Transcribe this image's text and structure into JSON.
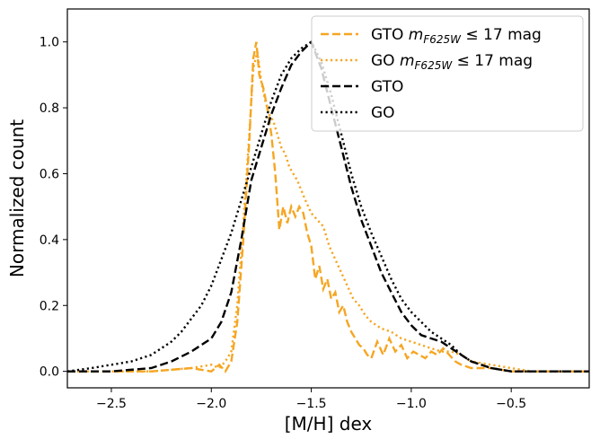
{
  "chart_data": {
    "type": "line",
    "xlabel": "[M/H] dex",
    "ylabel": "Normalized count",
    "xlim": [
      -2.72,
      -0.11
    ],
    "ylim": [
      -0.05,
      1.1
    ],
    "xticks": [
      -2.5,
      -2.0,
      -1.5,
      -1.0,
      -0.5
    ],
    "xtick_labels": [
      "−2.5",
      "−2.0",
      "−1.5",
      "−1.0",
      "−0.5"
    ],
    "yticks": [
      0.0,
      0.2,
      0.4,
      0.6,
      0.8,
      1.0
    ],
    "ytick_labels": [
      "0.0",
      "0.2",
      "0.4",
      "0.6",
      "0.8",
      "1.0"
    ],
    "grid": false,
    "legend_position": "top-right",
    "series": [
      {
        "name": "GTO m_F625W ≤ 17 mag",
        "label_main": "GTO ",
        "label_var": "m",
        "label_sub": "F625W",
        "label_rest": " ≤ 17 mag",
        "color": "#f5a623",
        "style": "dashed",
        "x": [
          -2.72,
          -2.3,
          -2.1,
          -2.0,
          -1.96,
          -1.93,
          -1.9,
          -1.87,
          -1.84,
          -1.81,
          -1.79,
          -1.775,
          -1.76,
          -1.74,
          -1.72,
          -1.7,
          -1.68,
          -1.66,
          -1.64,
          -1.62,
          -1.6,
          -1.58,
          -1.56,
          -1.54,
          -1.52,
          -1.5,
          -1.48,
          -1.46,
          -1.44,
          -1.42,
          -1.4,
          -1.38,
          -1.36,
          -1.34,
          -1.32,
          -1.3,
          -1.28,
          -1.26,
          -1.24,
          -1.22,
          -1.2,
          -1.17,
          -1.14,
          -1.11,
          -1.08,
          -1.05,
          -1.02,
          -0.99,
          -0.96,
          -0.93,
          -0.9,
          -0.87,
          -0.84,
          -0.81,
          -0.78,
          -0.75,
          -0.7,
          -0.6,
          -0.5,
          -0.4,
          -0.3,
          -0.11
        ],
        "y": [
          0.0,
          0.0,
          0.01,
          0.0,
          0.02,
          0.0,
          0.03,
          0.15,
          0.4,
          0.7,
          0.95,
          1.0,
          0.9,
          0.86,
          0.8,
          0.72,
          0.6,
          0.43,
          0.5,
          0.45,
          0.5,
          0.47,
          0.5,
          0.48,
          0.42,
          0.38,
          0.28,
          0.32,
          0.25,
          0.28,
          0.22,
          0.24,
          0.18,
          0.2,
          0.15,
          0.12,
          0.1,
          0.08,
          0.07,
          0.05,
          0.04,
          0.09,
          0.05,
          0.1,
          0.06,
          0.08,
          0.04,
          0.06,
          0.05,
          0.04,
          0.06,
          0.05,
          0.07,
          0.05,
          0.03,
          0.02,
          0.01,
          0.01,
          0.0,
          0.0,
          0.0,
          0.0
        ]
      },
      {
        "name": "GO m_F625W ≤ 17 mag",
        "label_main": "GO ",
        "label_var": "m",
        "label_sub": "F625W",
        "label_rest": " ≤ 17 mag",
        "color": "#f5a623",
        "style": "dotted",
        "x": [
          -2.72,
          -2.3,
          -2.1,
          -2.0,
          -1.96,
          -1.93,
          -1.9,
          -1.87,
          -1.84,
          -1.81,
          -1.79,
          -1.77,
          -1.75,
          -1.73,
          -1.71,
          -1.69,
          -1.67,
          -1.65,
          -1.63,
          -1.61,
          -1.59,
          -1.57,
          -1.55,
          -1.53,
          -1.5,
          -1.47,
          -1.44,
          -1.41,
          -1.38,
          -1.35,
          -1.32,
          -1.29,
          -1.26,
          -1.23,
          -1.2,
          -1.15,
          -1.1,
          -1.05,
          -1.0,
          -0.95,
          -0.9,
          -0.85,
          -0.8,
          -0.75,
          -0.7,
          -0.6,
          -0.5,
          -0.4,
          -0.3,
          -0.11
        ],
        "y": [
          0.0,
          0.0,
          0.01,
          0.02,
          0.01,
          0.03,
          0.06,
          0.2,
          0.45,
          0.72,
          0.92,
          0.97,
          0.88,
          0.82,
          0.78,
          0.76,
          0.72,
          0.68,
          0.66,
          0.62,
          0.6,
          0.58,
          0.55,
          0.52,
          0.48,
          0.46,
          0.44,
          0.38,
          0.34,
          0.3,
          0.26,
          0.22,
          0.2,
          0.17,
          0.15,
          0.13,
          0.12,
          0.1,
          0.09,
          0.08,
          0.07,
          0.06,
          0.06,
          0.05,
          0.03,
          0.02,
          0.01,
          0.0,
          0.0,
          0.0
        ]
      },
      {
        "name": "GTO",
        "label_main": "GTO",
        "color": "#000000",
        "style": "dashed",
        "x": [
          -2.72,
          -2.5,
          -2.3,
          -2.2,
          -2.1,
          -2.05,
          -2.0,
          -1.95,
          -1.9,
          -1.85,
          -1.8,
          -1.75,
          -1.7,
          -1.65,
          -1.6,
          -1.55,
          -1.5,
          -1.45,
          -1.4,
          -1.35,
          -1.3,
          -1.25,
          -1.2,
          -1.15,
          -1.1,
          -1.05,
          -1.0,
          -0.95,
          -0.9,
          -0.85,
          -0.8,
          -0.75,
          -0.7,
          -0.6,
          -0.5,
          -0.4,
          -0.3,
          -0.11
        ],
        "y": [
          0.0,
          0.0,
          0.01,
          0.03,
          0.06,
          0.08,
          0.1,
          0.15,
          0.24,
          0.4,
          0.58,
          0.68,
          0.78,
          0.86,
          0.93,
          0.97,
          1.0,
          0.92,
          0.8,
          0.68,
          0.56,
          0.46,
          0.38,
          0.3,
          0.24,
          0.18,
          0.14,
          0.11,
          0.1,
          0.09,
          0.07,
          0.05,
          0.03,
          0.01,
          0.0,
          0.0,
          0.0,
          0.0
        ]
      },
      {
        "name": "GO",
        "label_main": "GO",
        "color": "#000000",
        "style": "dotted",
        "x": [
          -2.72,
          -2.6,
          -2.5,
          -2.4,
          -2.3,
          -2.25,
          -2.2,
          -2.15,
          -2.1,
          -2.05,
          -2.0,
          -1.95,
          -1.9,
          -1.85,
          -1.8,
          -1.75,
          -1.7,
          -1.65,
          -1.6,
          -1.55,
          -1.5,
          -1.45,
          -1.4,
          -1.35,
          -1.3,
          -1.25,
          -1.2,
          -1.15,
          -1.1,
          -1.05,
          -1.0,
          -0.95,
          -0.9,
          -0.85,
          -0.8,
          -0.75,
          -0.7,
          -0.6,
          -0.5,
          -0.4,
          -0.3,
          -0.11
        ],
        "y": [
          0.0,
          0.01,
          0.02,
          0.03,
          0.05,
          0.07,
          0.09,
          0.12,
          0.16,
          0.2,
          0.26,
          0.34,
          0.42,
          0.52,
          0.62,
          0.72,
          0.82,
          0.9,
          0.95,
          0.98,
          1.0,
          0.94,
          0.84,
          0.72,
          0.6,
          0.5,
          0.42,
          0.35,
          0.28,
          0.22,
          0.18,
          0.15,
          0.12,
          0.1,
          0.08,
          0.05,
          0.03,
          0.01,
          0.0,
          0.0,
          0.0,
          0.0
        ]
      }
    ]
  }
}
